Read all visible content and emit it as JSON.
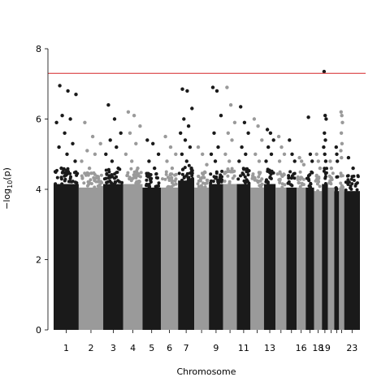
{
  "chart_data": {
    "type": "scatter",
    "subtype": "manhattan",
    "title": "",
    "xlabel": "Chromosome",
    "ylabel_parts": {
      "prefix": "−log",
      "sub": "10",
      "suffix": "(p)"
    },
    "ylim": [
      0,
      8
    ],
    "yticks": [
      0,
      2,
      4,
      6,
      8
    ],
    "significance_threshold": 7.3,
    "threshold_color": "#d62728",
    "colors": [
      "#1a1a1a",
      "#9a9a9a"
    ],
    "grid": false,
    "legend": "none",
    "chromosomes": [
      {
        "chr": 1,
        "label": "1",
        "bulk_max": 4.3,
        "peaks": [
          6.95,
          6.8,
          6.7,
          6.1,
          6.0,
          5.9,
          5.6,
          5.3,
          5.2,
          5.0,
          4.8,
          4.6
        ]
      },
      {
        "chr": 2,
        "label": "2",
        "bulk_max": 4.2,
        "peaks": [
          5.9,
          5.5,
          5.3,
          5.1,
          5.0,
          4.8,
          4.6
        ]
      },
      {
        "chr": 3,
        "label": "3",
        "bulk_max": 4.3,
        "peaks": [
          6.4,
          6.0,
          5.6,
          5.4,
          5.2,
          5.0,
          4.8,
          4.6
        ]
      },
      {
        "chr": 4,
        "label": "4",
        "bulk_max": 4.3,
        "peaks": [
          6.2,
          6.1,
          5.8,
          5.6,
          5.3,
          5.0,
          4.8,
          4.6
        ]
      },
      {
        "chr": 5,
        "label": "5",
        "bulk_max": 4.2,
        "peaks": [
          5.4,
          5.3,
          5.0,
          4.8,
          4.6
        ]
      },
      {
        "chr": 6,
        "label": "6",
        "bulk_max": 4.2,
        "peaks": [
          5.5,
          5.2,
          5.0,
          4.8,
          4.6
        ]
      },
      {
        "chr": 7,
        "label": "7",
        "bulk_max": 4.4,
        "peaks": [
          6.85,
          6.8,
          6.3,
          6.0,
          5.8,
          5.6,
          5.4,
          5.2,
          5.0,
          4.8,
          4.6
        ]
      },
      {
        "chr": 8,
        "label": "",
        "bulk_max": 4.2,
        "peaks": [
          5.2,
          5.0,
          4.7
        ]
      },
      {
        "chr": 9,
        "label": "9",
        "bulk_max": 4.3,
        "peaks": [
          6.9,
          6.8,
          6.1,
          5.6,
          5.2,
          5.0,
          4.8
        ]
      },
      {
        "chr": 10,
        "label": "",
        "bulk_max": 4.3,
        "peaks": [
          6.9,
          6.4,
          5.9,
          5.6,
          5.4,
          5.0,
          4.8
        ]
      },
      {
        "chr": 11,
        "label": "11",
        "bulk_max": 4.3,
        "peaks": [
          6.35,
          5.9,
          5.6,
          5.2,
          5.0,
          4.8
        ]
      },
      {
        "chr": 12,
        "label": "",
        "bulk_max": 4.2,
        "peaks": [
          6.0,
          5.8,
          5.4,
          5.0,
          4.8
        ]
      },
      {
        "chr": 13,
        "label": "13",
        "bulk_max": 4.3,
        "peaks": [
          5.7,
          5.6,
          5.4,
          5.2,
          5.0,
          4.8
        ]
      },
      {
        "chr": 14,
        "label": "",
        "bulk_max": 4.2,
        "peaks": [
          5.5,
          5.2,
          5.0,
          4.8
        ]
      },
      {
        "chr": 15,
        "label": "",
        "bulk_max": 4.2,
        "peaks": [
          5.4,
          5.0,
          4.8
        ]
      },
      {
        "chr": 16,
        "label": "16",
        "bulk_max": 4.2,
        "peaks": [
          4.9,
          4.8,
          4.7
        ]
      },
      {
        "chr": 17,
        "label": "",
        "bulk_max": 4.2,
        "peaks": [
          6.05,
          5.0,
          4.8
        ]
      },
      {
        "chr": 18,
        "label": "18",
        "bulk_max": 4.1,
        "peaks": [
          5.0,
          4.8,
          4.6
        ]
      },
      {
        "chr": 19,
        "label": "19",
        "bulk_max": 4.3,
        "peaks": [
          7.35,
          6.1,
          6.0,
          5.6,
          5.4,
          5.2,
          5.0,
          4.8
        ]
      },
      {
        "chr": 20,
        "label": "",
        "bulk_max": 4.2,
        "peaks": [
          4.8,
          4.6
        ]
      },
      {
        "chr": 21,
        "label": "",
        "bulk_max": 4.1,
        "peaks": [
          5.2,
          5.0,
          4.8
        ]
      },
      {
        "chr": 22,
        "label": "",
        "bulk_max": 4.2,
        "peaks": [
          6.2,
          6.1,
          5.9,
          5.6,
          5.3,
          5.1,
          4.9
        ]
      },
      {
        "chr": 23,
        "label": "23",
        "bulk_max": 4.1,
        "peaks": [
          4.9,
          4.6
        ]
      }
    ]
  }
}
